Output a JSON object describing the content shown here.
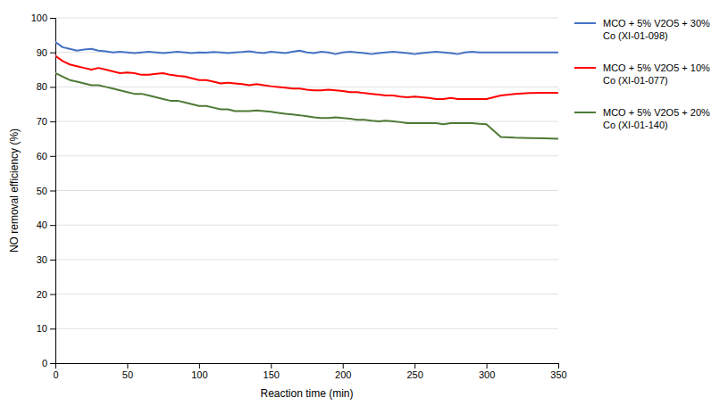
{
  "chart_data": {
    "type": "line",
    "xlabel": "Reaction time (min)",
    "ylabel": "NO removal efficiency  (%)",
    "xlim": [
      0,
      350
    ],
    "ylim": [
      0,
      100
    ],
    "xticks": [
      0,
      50,
      100,
      150,
      200,
      250,
      300,
      350
    ],
    "yticks": [
      0,
      10,
      20,
      30,
      40,
      50,
      60,
      70,
      80,
      90,
      100
    ],
    "grid": "y",
    "legend": "right",
    "x": [
      0,
      5,
      10,
      15,
      20,
      25,
      30,
      35,
      40,
      45,
      50,
      55,
      60,
      65,
      70,
      75,
      80,
      85,
      90,
      95,
      100,
      105,
      110,
      115,
      120,
      125,
      130,
      135,
      140,
      145,
      150,
      155,
      160,
      165,
      170,
      175,
      180,
      185,
      190,
      195,
      200,
      205,
      210,
      215,
      220,
      225,
      230,
      235,
      240,
      245,
      250,
      255,
      260,
      265,
      270,
      275,
      280,
      285,
      290,
      295,
      300,
      310,
      320,
      330,
      340,
      350
    ],
    "series": [
      {
        "name": "MCO + 5% V2O5 + 30%\nCo (XI-01-098)",
        "color": "#4472C4",
        "values": [
          93.0,
          91.5,
          91.0,
          90.5,
          90.8,
          91.0,
          90.5,
          90.3,
          90.0,
          90.2,
          90.0,
          89.8,
          90.0,
          90.2,
          90.0,
          89.8,
          90.0,
          90.2,
          90.0,
          89.8,
          90.0,
          89.9,
          90.1,
          90.0,
          89.8,
          90.0,
          90.1,
          90.3,
          90.0,
          89.8,
          90.2,
          90.0,
          89.8,
          90.2,
          90.5,
          90.0,
          89.8,
          90.2,
          90.0,
          89.5,
          90.0,
          90.2,
          90.0,
          89.8,
          89.5,
          89.8,
          90.0,
          90.2,
          90.0,
          89.8,
          89.5,
          89.8,
          90.0,
          90.2,
          90.0,
          89.8,
          89.5,
          90.0,
          90.2,
          90.0,
          90.0,
          90.0,
          90.0,
          90.0,
          90.0,
          90.0
        ]
      },
      {
        "name": "MCO + 5% V2O5 + 10%\nCo (XI-01-077)",
        "color": "#FF0000",
        "values": [
          89.0,
          87.5,
          86.5,
          86.0,
          85.5,
          85.0,
          85.5,
          85.0,
          84.5,
          84.0,
          84.2,
          84.0,
          83.5,
          83.5,
          83.8,
          84.0,
          83.5,
          83.2,
          83.0,
          82.5,
          82.0,
          82.0,
          81.5,
          81.0,
          81.2,
          81.0,
          80.8,
          80.5,
          80.8,
          80.5,
          80.2,
          80.0,
          79.8,
          79.5,
          79.5,
          79.2,
          79.0,
          79.0,
          79.2,
          79.0,
          78.8,
          78.5,
          78.5,
          78.2,
          78.0,
          77.8,
          77.5,
          77.5,
          77.2,
          77.0,
          77.2,
          77.0,
          76.8,
          76.5,
          76.5,
          76.8,
          76.5,
          76.5,
          76.5,
          76.5,
          76.5,
          77.5,
          78.0,
          78.2,
          78.3,
          78.3
        ]
      },
      {
        "name": "MCO + 5% V2O5 + 20%\nCo (XI-01-140)",
        "color": "#4E7A35",
        "values": [
          84.0,
          83.0,
          82.0,
          81.5,
          81.0,
          80.5,
          80.5,
          80.0,
          79.5,
          79.0,
          78.5,
          78.0,
          78.0,
          77.5,
          77.0,
          76.5,
          76.0,
          76.0,
          75.5,
          75.0,
          74.5,
          74.5,
          74.0,
          73.5,
          73.5,
          73.0,
          73.0,
          73.0,
          73.2,
          73.0,
          72.8,
          72.5,
          72.2,
          72.0,
          71.8,
          71.5,
          71.2,
          71.0,
          71.0,
          71.2,
          71.0,
          70.8,
          70.5,
          70.5,
          70.2,
          70.0,
          70.2,
          70.0,
          69.8,
          69.5,
          69.5,
          69.5,
          69.5,
          69.5,
          69.2,
          69.5,
          69.5,
          69.5,
          69.5,
          69.3,
          69.2,
          65.5,
          65.3,
          65.2,
          65.1,
          65.0
        ]
      }
    ]
  }
}
